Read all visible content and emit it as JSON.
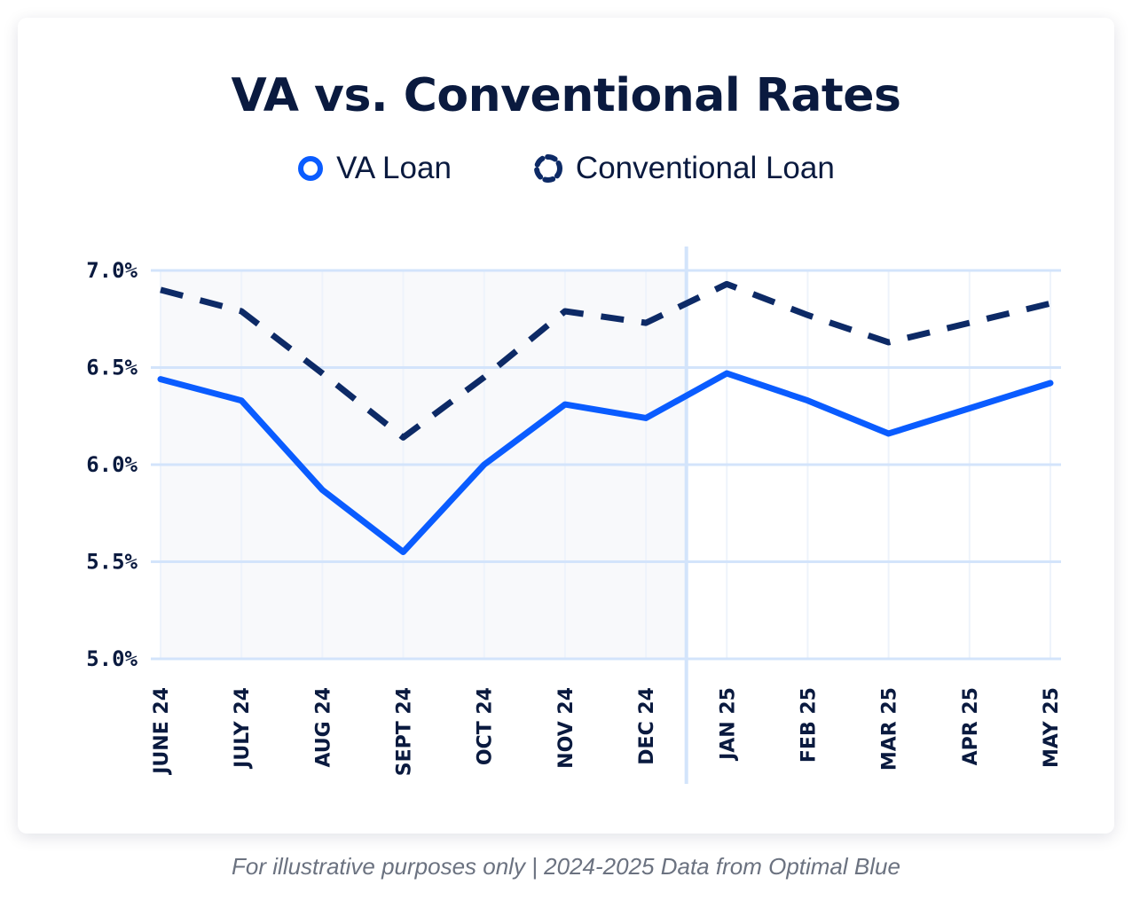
{
  "chart_data": {
    "type": "line",
    "title": "VA vs. Conventional Rates",
    "categories": [
      "JUNE 24",
      "JULY 24",
      "AUG 24",
      "SEPT 24",
      "OCT 24",
      "NOV 24",
      "DEC 24",
      "JAN 25",
      "FEB 25",
      "MAR 25",
      "APR 25",
      "MAY 25"
    ],
    "series": [
      {
        "name": "VA Loan",
        "color": "#0a5cff",
        "style": "solid",
        "values": [
          6.44,
          6.33,
          5.87,
          5.55,
          6.0,
          6.31,
          6.24,
          6.47,
          6.33,
          6.16,
          6.29,
          6.42
        ]
      },
      {
        "name": "Conventional Loan",
        "color": "#0d2a66",
        "style": "dashed",
        "values": [
          6.9,
          6.79,
          6.47,
          6.14,
          6.45,
          6.79,
          6.73,
          6.93,
          6.77,
          6.63,
          6.73,
          6.83
        ]
      }
    ],
    "yticks": [
      "5.0%",
      "5.5%",
      "6.0%",
      "6.5%",
      "7.0%"
    ],
    "ytick_values": [
      5.0,
      5.5,
      6.0,
      6.5,
      7.0
    ],
    "ylim": [
      5.0,
      7.0
    ],
    "grid": true,
    "legend": "top-center",
    "shaded_range": [
      "JUNE 24",
      "DEC 24"
    ],
    "divider_between": [
      "DEC 24",
      "JAN 25"
    ]
  },
  "footer": "For illustrative purposes only | 2024-2025 Data from Optimal Blue"
}
